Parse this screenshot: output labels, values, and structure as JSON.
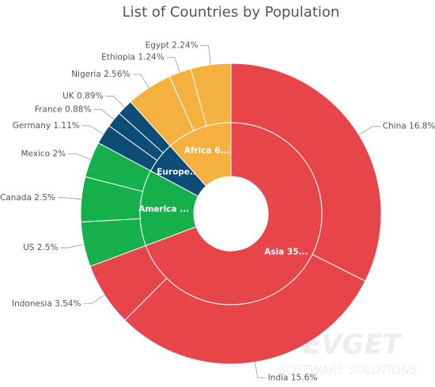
{
  "chart_data": {
    "type": "sunburst",
    "title": "List of Countries by Population",
    "series": [
      {
        "name": "Asia 35...",
        "color": "#e8454a",
        "categories": [
          "China",
          "India",
          "Indonesia"
        ],
        "values": [
          16.8,
          15.6,
          3.54
        ],
        "value_labels": [
          "16.8%",
          "15.6%",
          "3.54%"
        ]
      },
      {
        "name": "America ...",
        "color": "#15b04b",
        "categories": [
          "US",
          "Canada",
          "Mexico"
        ],
        "values": [
          2.5,
          2.5,
          2
        ],
        "value_labels": [
          "2.5%",
          "2.5%",
          "2%"
        ]
      },
      {
        "name": "Europe...",
        "color": "#0c4c77",
        "categories": [
          "Germany",
          "France",
          "UK"
        ],
        "values": [
          1.11,
          0.88,
          0.89
        ],
        "value_labels": [
          "1.11%",
          "0.88%",
          "0.89%"
        ]
      },
      {
        "name": "Africa 6...",
        "color": "#f4b13f",
        "categories": [
          "Nigeria",
          "Ethiopia",
          "Egypt"
        ],
        "values": [
          2.56,
          1.24,
          2.24
        ],
        "value_labels": [
          "2.56%",
          "1.24%",
          "2.24%"
        ]
      }
    ]
  },
  "watermark": {
    "title": "EVGET",
    "subtitle": "SOFTWARE SOLUTIONS"
  }
}
